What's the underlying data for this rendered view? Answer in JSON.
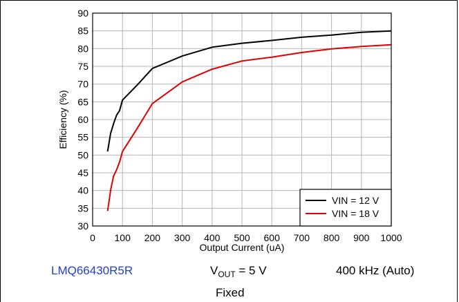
{
  "chart_data": {
    "type": "line",
    "xlabel": "Output Current (uA)",
    "ylabel": "Efficiency (%)",
    "xlim": [
      0,
      1000
    ],
    "ylim": [
      30,
      90
    ],
    "x_ticks": [
      "0",
      "100",
      "200",
      "300",
      "400",
      "500",
      "600",
      "700",
      "800",
      "900",
      "1000"
    ],
    "y_ticks": [
      "30",
      "35",
      "40",
      "45",
      "50",
      "55",
      "60",
      "65",
      "70",
      "75",
      "80",
      "85",
      "90"
    ],
    "grid": true,
    "legend_position": "bottom-right",
    "series": [
      {
        "name": "VIN = 12 V",
        "color": "#000000",
        "x": [
          50,
          55,
          60,
          70,
          80,
          90,
          100,
          150,
          200,
          300,
          400,
          500,
          600,
          700,
          800,
          900,
          1000
        ],
        "y": [
          51,
          53.5,
          56,
          58.8,
          61.2,
          62.5,
          65.5,
          69.8,
          74.4,
          77.9,
          80.4,
          81.5,
          82.3,
          83.2,
          83.8,
          84.6,
          85
        ]
      },
      {
        "name": "VIN = 18 V",
        "color": "#e00000",
        "x": [
          50,
          55,
          60,
          70,
          80,
          90,
          100,
          150,
          200,
          300,
          400,
          500,
          600,
          700,
          800,
          900,
          1000
        ],
        "y": [
          34.2,
          37,
          40,
          44,
          45.8,
          48,
          51,
          57.6,
          64.5,
          70.6,
          74.2,
          76.5,
          77.6,
          78.9,
          79.9,
          80.6,
          81.1
        ]
      }
    ]
  },
  "captions": {
    "part_name": "LMQ66430R5R",
    "vout_main": "V",
    "vout_sub": "OUT",
    "vout_value": " = 5 V",
    "frequency": "400 kHz (Auto)",
    "mode": "Fixed"
  }
}
